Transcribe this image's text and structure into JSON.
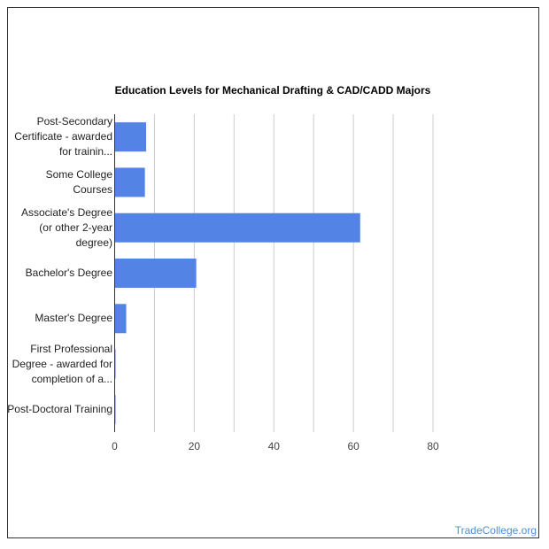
{
  "chart_data": {
    "type": "bar",
    "orientation": "horizontal",
    "title": "Education Levels for Mechanical Drafting & CAD/CADD Majors",
    "categories": [
      "Post-Secondary Certificate - awarded for trainin...",
      "Some College Courses",
      "Associate's Degree (or other 2-year degree)",
      "Bachelor's Degree",
      "Master's Degree",
      "First Professional Degree - awarded for completion of a...",
      "Post-Doctoral Training"
    ],
    "values": [
      7.9,
      7.6,
      61.7,
      20.5,
      2.9,
      0.2,
      0.2
    ],
    "xlim": [
      0,
      80
    ],
    "xticks": [
      "0",
      "20",
      "40",
      "60",
      "80"
    ],
    "grid": true,
    "bar_color": "#5384e5"
  },
  "brand": "TradeCollege.org"
}
